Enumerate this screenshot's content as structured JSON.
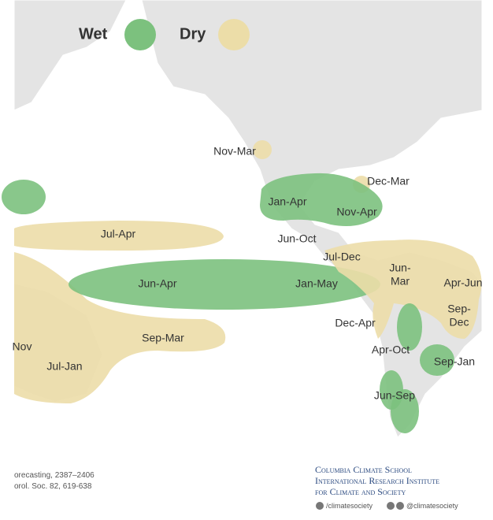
{
  "legend": [
    {
      "label": "Wet",
      "color": "#7cc17e"
    },
    {
      "label": "Dry",
      "color": "#ecdda8"
    }
  ],
  "regions": [
    {
      "lines": [
        "Nov-Mar"
      ]
    },
    {
      "lines": [
        "Dec-Mar"
      ]
    },
    {
      "lines": [
        "Jan-Apr"
      ]
    },
    {
      "lines": [
        "Nov-Apr"
      ]
    },
    {
      "lines": [
        "Jun-Oct"
      ]
    },
    {
      "lines": [
        "Jul-Dec"
      ]
    },
    {
      "lines": [
        "Jul-Apr"
      ]
    },
    {
      "lines": [
        "Jun-Apr"
      ]
    },
    {
      "lines": [
        "Jan-May"
      ]
    },
    {
      "lines": [
        "Jun-",
        "Mar"
      ]
    },
    {
      "lines": [
        "Apr-Jun"
      ]
    },
    {
      "lines": [
        "Sep-",
        "Dec"
      ]
    },
    {
      "lines": [
        "Dec-Apr"
      ]
    },
    {
      "lines": [
        "Apr-Oct"
      ]
    },
    {
      "lines": [
        "Sep-Jan"
      ]
    },
    {
      "lines": [
        "Sep-Mar"
      ]
    },
    {
      "lines": [
        "Jun-Sep"
      ]
    },
    {
      "lines": [
        "Jul-Jan"
      ]
    },
    {
      "lines": [
        "Nov"
      ]
    }
  ],
  "footer_refs": [
    "orecasting, 2387–2406",
    "orol. Soc. 82, 619-638"
  ],
  "credits": {
    "lines": [
      "Columbia Climate School",
      "International Research Institute",
      "for Climate and Society"
    ],
    "handles": [
      "/climatesociety",
      "@climatesociety"
    ]
  }
}
